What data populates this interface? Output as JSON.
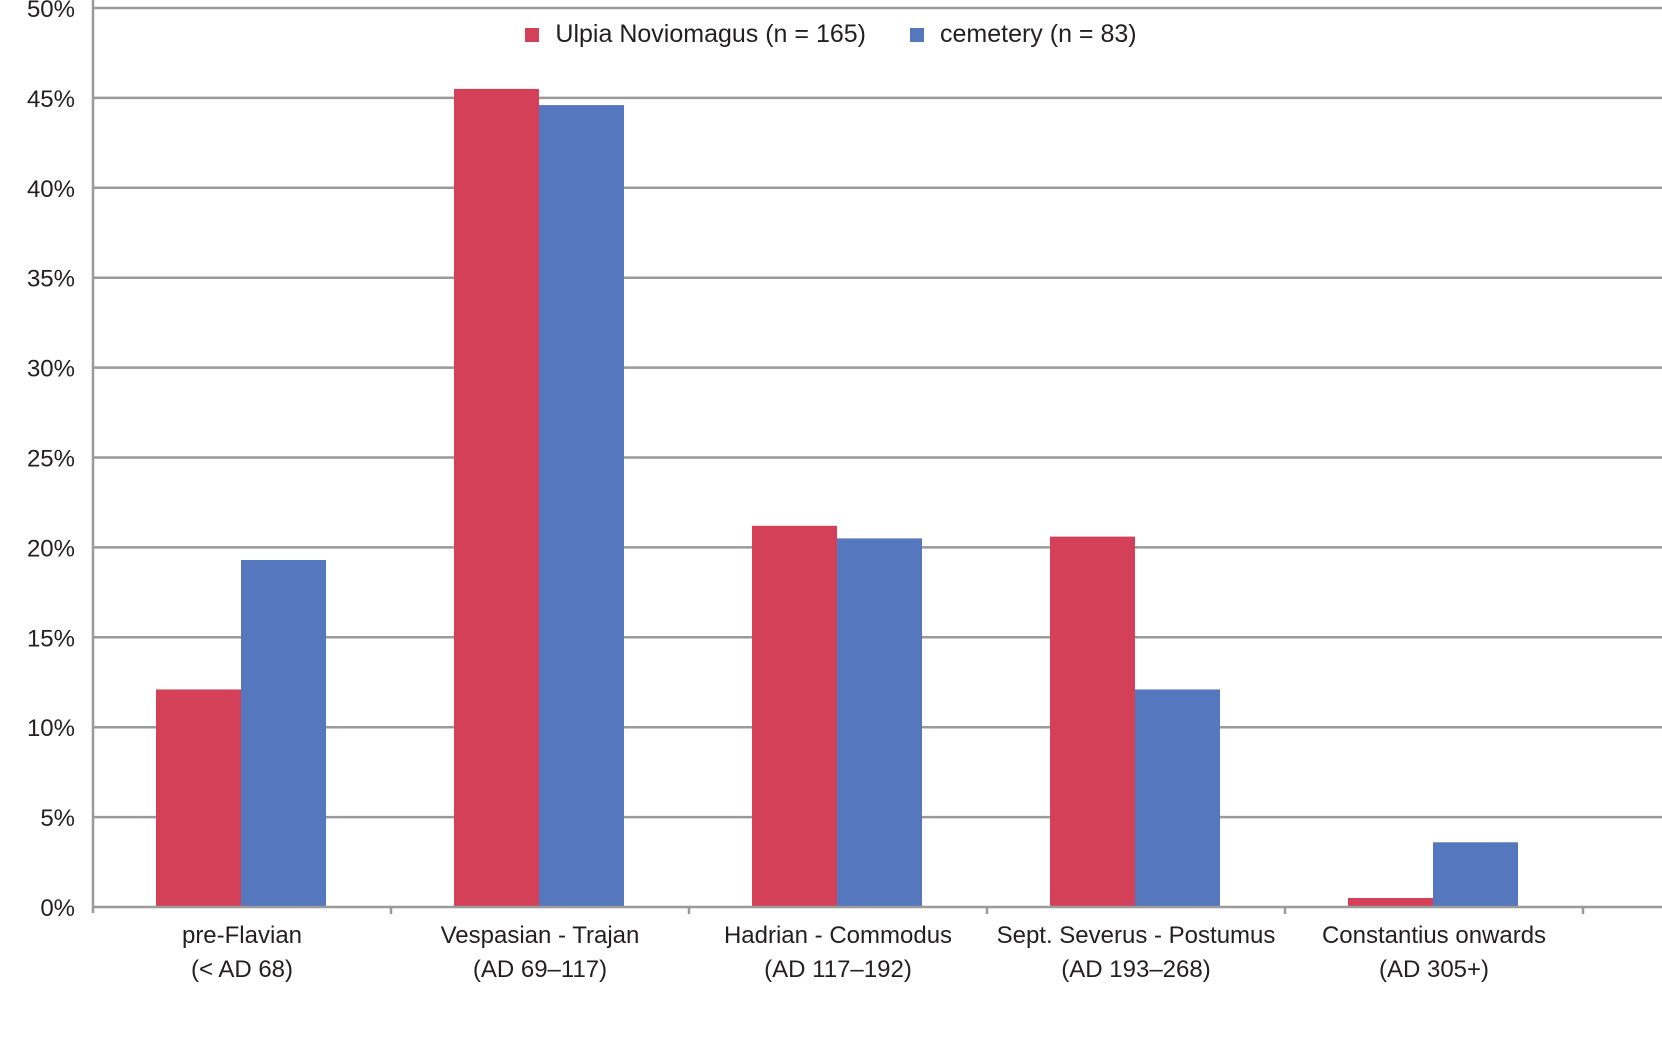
{
  "chart_data": {
    "type": "bar",
    "ylim": [
      0,
      50
    ],
    "y_ticks": [
      "0%",
      "5%",
      "10%",
      "15%",
      "20%",
      "25%",
      "30%",
      "35%",
      "40%",
      "45%",
      "50%"
    ],
    "grid": true,
    "legend_position": "top-center",
    "categories": [
      [
        "pre-Flavian",
        "(< AD 68)"
      ],
      [
        "Vespasian - Trajan",
        "(AD 69–117)"
      ],
      [
        "Hadrian - Commodus",
        "(AD 117–192)"
      ],
      [
        "Sept. Severus - Postumus",
        "(AD 193–268)"
      ],
      [
        "Constantius onwards",
        "(AD 305+)"
      ]
    ],
    "series": [
      {
        "name": "Ulpia Noviomagus  (n = 165)",
        "color": "#d44058",
        "values": [
          12.1,
          45.5,
          21.2,
          20.6,
          0.5
        ]
      },
      {
        "name": "cemetery (n = 83)",
        "color": "#5577be",
        "values": [
          19.3,
          44.6,
          20.5,
          12.1,
          3.6
        ]
      }
    ]
  }
}
